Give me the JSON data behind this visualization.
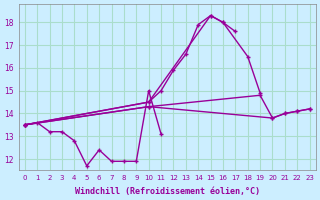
{
  "title": "",
  "xlabel": "Windchill (Refroidissement éolien,°C)",
  "ylabel": "",
  "background_color": "#cceeff",
  "grid_color": "#aaddcc",
  "line_color": "#990099",
  "xlim": [
    -0.5,
    23.5
  ],
  "ylim": [
    11.5,
    18.8
  ],
  "yticks": [
    12,
    13,
    14,
    15,
    16,
    17,
    18
  ],
  "xticks": [
    0,
    1,
    2,
    3,
    4,
    5,
    6,
    7,
    8,
    9,
    10,
    11,
    12,
    13,
    14,
    15,
    16,
    17,
    18,
    19,
    20,
    21,
    22,
    23
  ],
  "s1_x": [
    0,
    1,
    2,
    3,
    4,
    5,
    6,
    7,
    8,
    9,
    10,
    11
  ],
  "s1_y": [
    13.5,
    13.6,
    13.2,
    13.2,
    12.8,
    11.7,
    12.4,
    11.9,
    11.9,
    11.9,
    15.0,
    13.1
  ],
  "s2_x": [
    0,
    10,
    11,
    12,
    13,
    14,
    15,
    16,
    17
  ],
  "s2_y": [
    13.5,
    14.5,
    15.0,
    15.9,
    16.6,
    17.9,
    18.3,
    18.0,
    17.6
  ],
  "s3_x": [
    0,
    10,
    15,
    16,
    18,
    19
  ],
  "s3_y": [
    13.5,
    14.5,
    18.3,
    18.0,
    16.5,
    14.9
  ],
  "s4_x": [
    0,
    10,
    20,
    21,
    22,
    23
  ],
  "s4_y": [
    13.5,
    14.3,
    13.8,
    14.0,
    14.1,
    14.2
  ],
  "s5_x": [
    0,
    10,
    19,
    20,
    21,
    22,
    23
  ],
  "s5_y": [
    13.5,
    14.3,
    14.8,
    13.8,
    14.0,
    14.1,
    14.2
  ],
  "marker": "+",
  "markersize": 3.5,
  "linewidth": 1.0
}
